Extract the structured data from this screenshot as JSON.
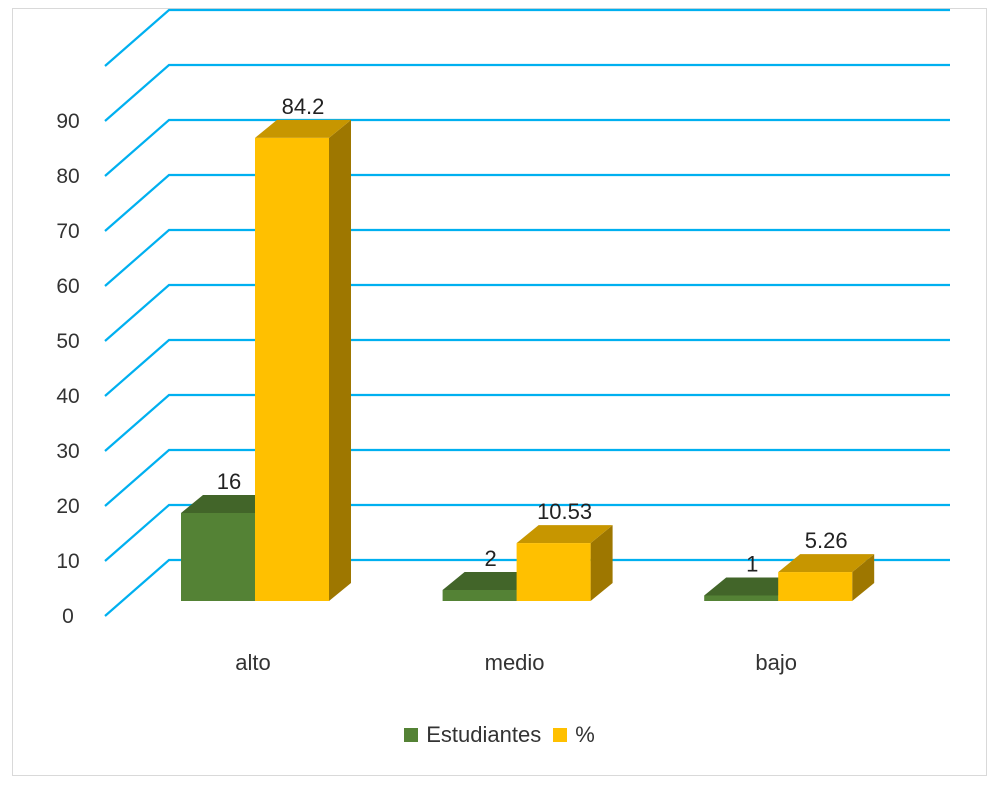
{
  "chart_data": {
    "type": "bar",
    "style": "3d-clustered-column",
    "categories": [
      "alto",
      "medio",
      "bajo"
    ],
    "series": [
      {
        "name": "Estudiantes",
        "values": [
          16,
          2,
          1
        ],
        "labels": [
          "16",
          "2",
          "1"
        ],
        "color": "#548235"
      },
      {
        "name": "%",
        "values": [
          84.2,
          10.53,
          5.26
        ],
        "labels": [
          "84.2",
          "10.53",
          "5.26"
        ],
        "color": "#ffc000"
      }
    ],
    "ylim": [
      0,
      100
    ],
    "yticks": [
      "0",
      "10",
      "20",
      "30",
      "40",
      "50",
      "60",
      "70",
      "80",
      "90"
    ],
    "grid": true,
    "grid_color": "#00b0f0",
    "legend_position": "bottom",
    "title": "",
    "xlabel": "",
    "ylabel": ""
  }
}
